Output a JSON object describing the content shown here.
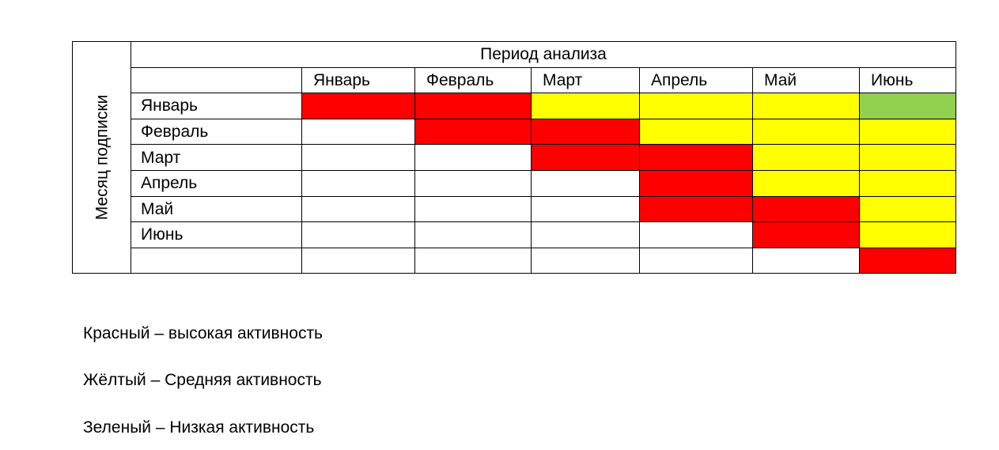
{
  "table": {
    "side_label": "Месяц подписки",
    "title": "Период анализа",
    "columns": [
      "Январь",
      "Февраль",
      "Март",
      "Апрель",
      "Май",
      "Июнь"
    ],
    "rows": [
      {
        "label": "Январь",
        "cells": [
          "high",
          "high",
          "medium",
          "medium",
          "medium",
          "low"
        ]
      },
      {
        "label": "Февраль",
        "cells": [
          "none",
          "high",
          "high",
          "medium",
          "medium",
          "medium"
        ]
      },
      {
        "label": "Март",
        "cells": [
          "none",
          "none",
          "high",
          "high",
          "medium",
          "medium"
        ]
      },
      {
        "label": "Апрель",
        "cells": [
          "none",
          "none",
          "none",
          "high",
          "medium",
          "medium"
        ]
      },
      {
        "label": "Май",
        "cells": [
          "none",
          "none",
          "none",
          "high",
          "high",
          "medium"
        ]
      },
      {
        "label": "Июнь",
        "cells": [
          "none",
          "none",
          "none",
          "none",
          "high",
          "medium"
        ]
      },
      {
        "label": "",
        "cells": [
          "none",
          "none",
          "none",
          "none",
          "none",
          "high"
        ]
      }
    ],
    "colors": {
      "high": "#ff0000",
      "medium": "#ffff00",
      "low": "#92d050",
      "none": "#ffffff"
    }
  },
  "legend": [
    "Красный – высокая активность",
    "Жёлтый – Средняя активность",
    "Зеленый – Низкая активность"
  ]
}
